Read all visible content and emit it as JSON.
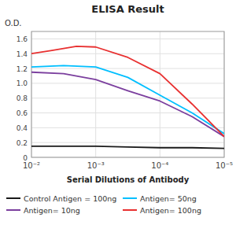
{
  "chart_data": {
    "type": "line",
    "title": "ELISA Result",
    "ylabel": "O.D.",
    "xlabel": "Serial Dilutions of Antibody",
    "xlim": [
      -2,
      -5
    ],
    "xticks": [
      {
        "value": -2,
        "label": "10⁻²"
      },
      {
        "value": -3,
        "label": "10⁻³"
      },
      {
        "value": -4,
        "label": "10⁻⁴"
      },
      {
        "value": -5,
        "label": "10⁻⁵"
      }
    ],
    "ylim": [
      0,
      1.7
    ],
    "yticks": [
      0,
      0.2,
      0.4,
      0.6,
      0.8,
      {
        "value": 1.0,
        "label": "1.0"
      },
      1.2,
      1.4,
      1.6
    ],
    "grid": true,
    "legend": "bottom",
    "series": [
      {
        "name": "Control Antigen = 100ng",
        "color": "#1a1a1a",
        "x": [
          -2,
          -2.5,
          -3,
          -3.5,
          -4,
          -4.5,
          -5
        ],
        "values": [
          0.15,
          0.15,
          0.15,
          0.14,
          0.13,
          0.13,
          0.12
        ]
      },
      {
        "name": "Antigen= 10ng",
        "color": "#7b3f9e",
        "x": [
          -2,
          -2.5,
          -3,
          -3.5,
          -4,
          -4.5,
          -5
        ],
        "values": [
          1.15,
          1.13,
          1.05,
          0.9,
          0.76,
          0.55,
          0.28
        ]
      },
      {
        "name": "Antigen= 50ng",
        "color": "#00bfff",
        "x": [
          -2,
          -2.5,
          -3,
          -3.5,
          -4,
          -4.5,
          -5
        ],
        "values": [
          1.22,
          1.24,
          1.22,
          1.08,
          0.84,
          0.6,
          0.32
        ]
      },
      {
        "name": "Antigen= 100ng",
        "color": "#e83030",
        "x": [
          -2,
          -2.3,
          -2.7,
          -3,
          -3.5,
          -4,
          -4.5,
          -5
        ],
        "values": [
          1.4,
          1.44,
          1.5,
          1.49,
          1.35,
          1.13,
          0.72,
          0.28
        ]
      }
    ]
  }
}
